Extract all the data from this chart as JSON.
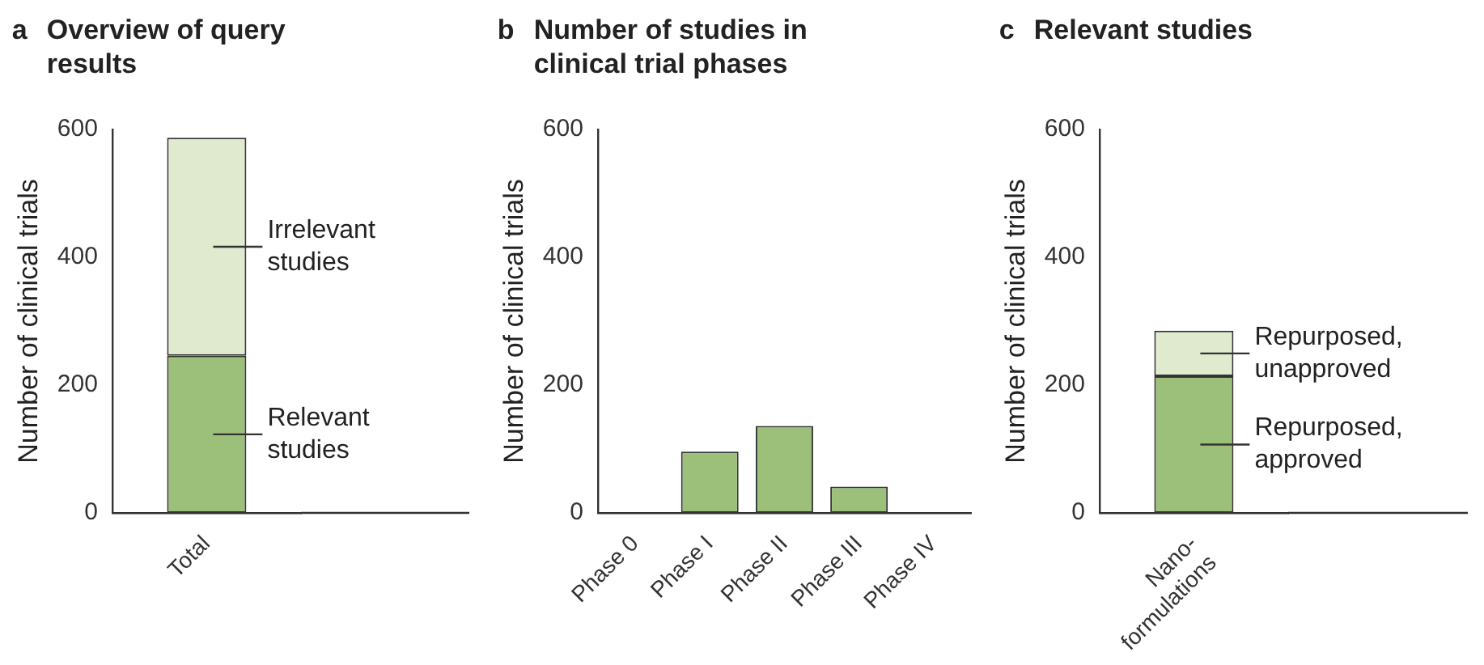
{
  "chart_data": [
    {
      "type": "bar",
      "title": "Overview of query results",
      "annotations": [
        "a"
      ],
      "ylabel": "Number of clinical trials",
      "categories": [
        "Total"
      ],
      "stacked": true,
      "legend": "right",
      "ylim": [
        0,
        600
      ],
      "yticks": [
        0,
        200,
        400,
        600
      ],
      "series": [
        {
          "name": "Relevant studies",
          "color": "#9cc07a",
          "values": [
            246
          ]
        },
        {
          "name": "Irrelevant studies",
          "color": "#dfeacf",
          "values": [
            341
          ]
        }
      ]
    },
    {
      "type": "bar",
      "title": "Number of studies in clinical trial phases",
      "annotations": [
        "b"
      ],
      "ylabel": "Number of clinical trials",
      "categories": [
        "Phase 0",
        "Phase I",
        "Phase II",
        "Phase III",
        "Phase IV"
      ],
      "ylim": [
        0,
        600
      ],
      "yticks": [
        0,
        200,
        400,
        600
      ],
      "series": [
        {
          "color": "#9cc07a",
          "values": [
            0,
            96,
            136,
            41,
            0
          ]
        }
      ]
    },
    {
      "type": "bar",
      "title": "Relevant studies",
      "annotations": [
        "c"
      ],
      "ylabel": "Number of clinical trials",
      "categories": [
        "Nano-formulations"
      ],
      "stacked": true,
      "legend": "right",
      "ylim": [
        0,
        600
      ],
      "yticks": [
        0,
        200,
        400,
        600
      ],
      "series": [
        {
          "name": "Repurposed, approved",
          "color": "#9cc07a",
          "values": [
            214
          ]
        },
        {
          "name": "Repurposed, unapproved",
          "color": "#dfeacf",
          "values": [
            71
          ]
        }
      ]
    }
  ]
}
